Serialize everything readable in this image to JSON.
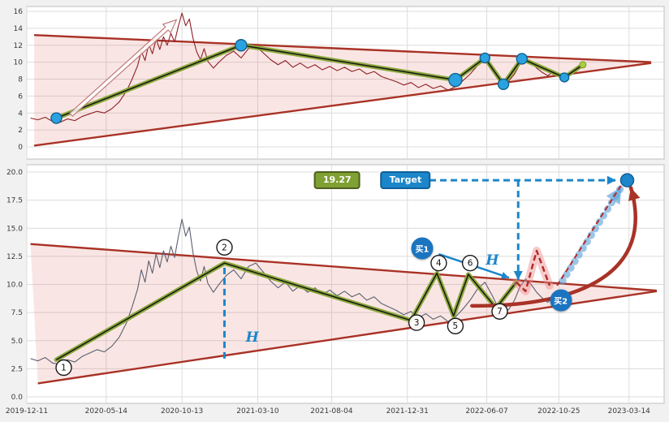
{
  "figure": {
    "bg": "#f1f1f1",
    "panel_bg": "#ffffff",
    "grid_color": "#dcdcdc",
    "border_color": "#bfbfbf",
    "tick_color": "#3a3a3a",
    "accent_blue": "#1c86ca",
    "accent_red": "#a93226",
    "accent_green": "#86a532"
  },
  "annotations": {
    "price_label": "19.27",
    "target_label": "Target",
    "buy1_label": "买1",
    "buy2_label": "买2",
    "h_label": "H"
  },
  "chart_data": [
    {
      "type": "line",
      "panel": "top",
      "title": "",
      "xlabel": "",
      "ylabel": "",
      "grid": true,
      "legend": "none",
      "x_range": [
        2019.94,
        2023.39
      ],
      "y_range": [
        0,
        16
      ],
      "y_ticks": [
        0,
        2,
        4,
        6,
        8,
        10,
        12,
        14,
        16
      ],
      "x_ticks": [
        2019.94,
        2020.37,
        2020.78,
        2021.19,
        2021.59,
        2022.0,
        2022.43,
        2022.82,
        2023.2
      ],
      "wedge": {
        "line": "#a93226",
        "fill": "rgba(217,98,88,0.16)",
        "upper": [
          [
            2019.98,
            13.2
          ],
          [
            2023.32,
            10.0
          ]
        ],
        "lower": [
          [
            2019.98,
            0.15
          ],
          [
            2023.32,
            9.9
          ]
        ]
      },
      "price": {
        "name": "price",
        "color": "#8e1f25",
        "points": [
          [
            2019.96,
            3.4
          ],
          [
            2020.0,
            3.2
          ],
          [
            2020.04,
            3.5
          ],
          [
            2020.08,
            3.0
          ],
          [
            2020.12,
            2.9
          ],
          [
            2020.16,
            3.3
          ],
          [
            2020.2,
            3.1
          ],
          [
            2020.24,
            3.6
          ],
          [
            2020.28,
            3.9
          ],
          [
            2020.32,
            4.2
          ],
          [
            2020.36,
            4.0
          ],
          [
            2020.4,
            4.5
          ],
          [
            2020.44,
            5.3
          ],
          [
            2020.48,
            6.6
          ],
          [
            2020.51,
            8.0
          ],
          [
            2020.54,
            9.6
          ],
          [
            2020.56,
            11.3
          ],
          [
            2020.58,
            10.2
          ],
          [
            2020.6,
            12.1
          ],
          [
            2020.62,
            11.0
          ],
          [
            2020.64,
            12.7
          ],
          [
            2020.66,
            11.5
          ],
          [
            2020.68,
            13.0
          ],
          [
            2020.7,
            12.0
          ],
          [
            2020.72,
            13.4
          ],
          [
            2020.74,
            12.4
          ],
          [
            2020.76,
            14.2
          ],
          [
            2020.78,
            15.8
          ],
          [
            2020.8,
            14.3
          ],
          [
            2020.82,
            15.1
          ],
          [
            2020.84,
            12.8
          ],
          [
            2020.86,
            11.2
          ],
          [
            2020.88,
            10.3
          ],
          [
            2020.9,
            11.6
          ],
          [
            2020.92,
            10.1
          ],
          [
            2020.95,
            9.3
          ],
          [
            2020.98,
            10.0
          ],
          [
            2021.02,
            10.8
          ],
          [
            2021.06,
            11.3
          ],
          [
            2021.1,
            10.5
          ],
          [
            2021.14,
            11.6
          ],
          [
            2021.18,
            11.9
          ],
          [
            2021.22,
            11.1
          ],
          [
            2021.26,
            10.3
          ],
          [
            2021.3,
            9.7
          ],
          [
            2021.34,
            10.2
          ],
          [
            2021.38,
            9.4
          ],
          [
            2021.42,
            9.9
          ],
          [
            2021.46,
            9.3
          ],
          [
            2021.5,
            9.7
          ],
          [
            2021.54,
            9.1
          ],
          [
            2021.58,
            9.5
          ],
          [
            2021.62,
            9.0
          ],
          [
            2021.66,
            9.4
          ],
          [
            2021.7,
            8.9
          ],
          [
            2021.74,
            9.2
          ],
          [
            2021.78,
            8.6
          ],
          [
            2021.82,
            8.9
          ],
          [
            2021.86,
            8.3
          ],
          [
            2021.9,
            8.0
          ],
          [
            2021.94,
            7.7
          ],
          [
            2021.98,
            7.3
          ],
          [
            2022.02,
            7.6
          ],
          [
            2022.06,
            7.0
          ],
          [
            2022.1,
            7.4
          ],
          [
            2022.14,
            6.9
          ],
          [
            2022.18,
            7.2
          ],
          [
            2022.22,
            6.7
          ],
          [
            2022.26,
            7.1
          ],
          [
            2022.3,
            7.8
          ],
          [
            2022.34,
            8.6
          ],
          [
            2022.38,
            9.6
          ],
          [
            2022.42,
            10.2
          ],
          [
            2022.46,
            9.0
          ],
          [
            2022.49,
            8.0
          ],
          [
            2022.52,
            7.3
          ],
          [
            2022.55,
            7.8
          ],
          [
            2022.58,
            8.6
          ],
          [
            2022.61,
            9.8
          ],
          [
            2022.64,
            10.5
          ],
          [
            2022.67,
            10.0
          ],
          [
            2022.7,
            9.3
          ],
          [
            2022.73,
            8.8
          ],
          [
            2022.76,
            8.4
          ],
          [
            2022.79,
            8.9
          ],
          [
            2022.82,
            8.5
          ],
          [
            2022.85,
            8.1
          ],
          [
            2022.88,
            8.7
          ],
          [
            2022.91,
            9.2
          ],
          [
            2022.94,
            9.7
          ]
        ]
      },
      "zigzag": {
        "outer": "#86a532",
        "inner": "#161616",
        "points": [
          [
            2020.1,
            3.4
          ],
          [
            2021.1,
            12.0
          ],
          [
            2022.26,
            7.9
          ],
          [
            2022.42,
            10.5
          ],
          [
            2022.52,
            7.4
          ],
          [
            2022.62,
            10.4
          ],
          [
            2022.85,
            8.2
          ],
          [
            2022.95,
            9.7
          ]
        ]
      },
      "markers": [
        {
          "x": 2020.1,
          "y": 3.4,
          "r": 6.5
        },
        {
          "x": 2021.1,
          "y": 12.0,
          "r": 7
        },
        {
          "x": 2022.26,
          "y": 7.9,
          "r": 8
        },
        {
          "x": 2022.42,
          "y": 10.5,
          "r": 6
        },
        {
          "x": 2022.52,
          "y": 7.4,
          "r": 6.5
        },
        {
          "x": 2022.62,
          "y": 10.4,
          "r": 6.5
        },
        {
          "x": 2022.85,
          "y": 8.2,
          "r": 5.5
        }
      ],
      "end_dot": {
        "x": 2022.95,
        "y": 9.7
      },
      "arrow_hollow": {
        "from": [
          2020.18,
          3.8
        ],
        "to": [
          2020.75,
          15.0
        ]
      }
    },
    {
      "type": "line",
      "panel": "bottom",
      "title": "",
      "xlabel": "",
      "ylabel": "",
      "grid": true,
      "legend": "none",
      "x_range": [
        2019.94,
        2023.39
      ],
      "y_range": [
        0,
        20
      ],
      "y_ticks": [
        0,
        2.5,
        5,
        7.5,
        10,
        12.5,
        15,
        17.5,
        20
      ],
      "y_tick_labels": [
        "0.0",
        "2.5",
        "5.0",
        "7.5",
        "10.0",
        "12.5",
        "15.0",
        "17.5",
        "20.0"
      ],
      "x_ticks": [
        2019.94,
        2020.37,
        2020.78,
        2021.19,
        2021.59,
        2022.0,
        2022.43,
        2022.82,
        2023.2
      ],
      "x_tick_labels": [
        "2019-12-11",
        "2020-05-14",
        "2020-10-13",
        "2021-03-10",
        "2021-08-04",
        "2021-12-31",
        "2022-06-07",
        "2022-10-25",
        "2023-03-14"
      ],
      "wedge": {
        "line": "#a93226",
        "fill": "rgba(217,98,88,0.16)",
        "upper": [
          [
            2019.96,
            13.6
          ],
          [
            2023.35,
            9.45
          ]
        ],
        "lower": [
          [
            2020.0,
            1.2
          ],
          [
            2023.35,
            9.4
          ]
        ]
      },
      "price": {
        "name": "price",
        "color": "#5b6070",
        "points": [
          [
            2019.96,
            3.4
          ],
          [
            2020.0,
            3.2
          ],
          [
            2020.04,
            3.5
          ],
          [
            2020.08,
            3.0
          ],
          [
            2020.12,
            2.9
          ],
          [
            2020.16,
            3.3
          ],
          [
            2020.2,
            3.1
          ],
          [
            2020.24,
            3.6
          ],
          [
            2020.28,
            3.9
          ],
          [
            2020.32,
            4.2
          ],
          [
            2020.36,
            4.0
          ],
          [
            2020.4,
            4.5
          ],
          [
            2020.44,
            5.3
          ],
          [
            2020.48,
            6.6
          ],
          [
            2020.51,
            8.0
          ],
          [
            2020.54,
            9.6
          ],
          [
            2020.56,
            11.3
          ],
          [
            2020.58,
            10.2
          ],
          [
            2020.6,
            12.1
          ],
          [
            2020.62,
            11.0
          ],
          [
            2020.64,
            12.7
          ],
          [
            2020.66,
            11.5
          ],
          [
            2020.68,
            13.0
          ],
          [
            2020.7,
            12.0
          ],
          [
            2020.72,
            13.4
          ],
          [
            2020.74,
            12.4
          ],
          [
            2020.76,
            14.2
          ],
          [
            2020.78,
            15.8
          ],
          [
            2020.8,
            14.3
          ],
          [
            2020.82,
            15.1
          ],
          [
            2020.84,
            12.8
          ],
          [
            2020.86,
            11.2
          ],
          [
            2020.88,
            10.3
          ],
          [
            2020.9,
            11.6
          ],
          [
            2020.92,
            10.1
          ],
          [
            2020.95,
            9.3
          ],
          [
            2020.98,
            10.0
          ],
          [
            2021.02,
            10.8
          ],
          [
            2021.06,
            11.3
          ],
          [
            2021.1,
            10.5
          ],
          [
            2021.14,
            11.6
          ],
          [
            2021.18,
            11.9
          ],
          [
            2021.22,
            11.1
          ],
          [
            2021.26,
            10.3
          ],
          [
            2021.3,
            9.7
          ],
          [
            2021.34,
            10.2
          ],
          [
            2021.38,
            9.4
          ],
          [
            2021.42,
            9.9
          ],
          [
            2021.46,
            9.3
          ],
          [
            2021.5,
            9.7
          ],
          [
            2021.54,
            9.1
          ],
          [
            2021.58,
            9.5
          ],
          [
            2021.62,
            9.0
          ],
          [
            2021.66,
            9.4
          ],
          [
            2021.7,
            8.9
          ],
          [
            2021.74,
            9.2
          ],
          [
            2021.78,
            8.6
          ],
          [
            2021.82,
            8.9
          ],
          [
            2021.86,
            8.3
          ],
          [
            2021.9,
            8.0
          ],
          [
            2021.94,
            7.7
          ],
          [
            2021.98,
            7.3
          ],
          [
            2022.02,
            7.6
          ],
          [
            2022.06,
            7.0
          ],
          [
            2022.1,
            7.4
          ],
          [
            2022.14,
            6.9
          ],
          [
            2022.18,
            7.2
          ],
          [
            2022.22,
            6.7
          ],
          [
            2022.26,
            7.1
          ],
          [
            2022.3,
            7.8
          ],
          [
            2022.34,
            8.6
          ],
          [
            2022.38,
            9.6
          ],
          [
            2022.42,
            10.2
          ],
          [
            2022.46,
            9.0
          ],
          [
            2022.49,
            8.0
          ],
          [
            2022.52,
            7.3
          ],
          [
            2022.55,
            7.8
          ],
          [
            2022.58,
            8.6
          ],
          [
            2022.61,
            9.8
          ],
          [
            2022.64,
            10.5
          ],
          [
            2022.67,
            10.0
          ],
          [
            2022.7,
            9.3
          ],
          [
            2022.73,
            8.8
          ],
          [
            2022.76,
            8.4
          ],
          [
            2022.79,
            8.9
          ],
          [
            2022.82,
            8.5
          ]
        ]
      },
      "zigzag": {
        "outer": "#86a532",
        "inner": "#161616",
        "points": [
          [
            2020.1,
            3.3
          ],
          [
            2021.01,
            11.9
          ],
          [
            2022.02,
            6.8
          ],
          [
            2022.16,
            11.0
          ],
          [
            2022.25,
            7.2
          ],
          [
            2022.33,
            10.9
          ],
          [
            2022.48,
            7.9
          ],
          [
            2022.59,
            10.2
          ]
        ]
      },
      "pivots": [
        {
          "n": "1",
          "x": 2020.14,
          "y": 2.6
        },
        {
          "n": "2",
          "x": 2021.01,
          "y": 13.3
        },
        {
          "n": "3",
          "x": 2022.05,
          "y": 6.6
        },
        {
          "n": "4",
          "x": 2022.17,
          "y": 11.9
        },
        {
          "n": "5",
          "x": 2022.26,
          "y": 6.3
        },
        {
          "n": "6",
          "x": 2022.34,
          "y": 11.9
        },
        {
          "n": "7",
          "x": 2022.5,
          "y": 7.6
        }
      ],
      "projection": {
        "halo": "rgba(238,140,140,0.45)",
        "line": "#b02a27",
        "points": [
          [
            2022.59,
            10.2
          ],
          [
            2022.64,
            9.4
          ],
          [
            2022.7,
            13.0
          ],
          [
            2022.77,
            9.9
          ]
        ]
      },
      "trend_curve": {
        "p0": [
          2022.35,
          8.1
        ],
        "c1": [
          2022.95,
          8.0
        ],
        "c2": [
          2023.34,
          11.2
        ],
        "p1": [
          2023.21,
          18.6
        ]
      },
      "blue_arrow": {
        "from": [
          2022.84,
          10.3
        ],
        "to": [
          2023.16,
          18.7
        ]
      },
      "red_dash": {
        "from": [
          2022.81,
          9.9
        ],
        "to": [
          2023.16,
          18.9
        ]
      },
      "measures": {
        "v1": {
          "x": 2021.01,
          "y1": 3.4,
          "y2": 11.8
        },
        "v2": {
          "x": 2022.6,
          "y1": 19.27,
          "y2": 10.4
        },
        "h_arrow": {
          "y": 19.27,
          "x1": 2022.12,
          "x2": 2023.13
        },
        "buy_arrow": {
          "from": [
            2022.17,
            12.7
          ],
          "to": [
            2022.55,
            10.6
          ]
        }
      },
      "target_dot": {
        "x": 2023.19,
        "y": 19.27
      },
      "target_value": 19.27,
      "labels_pos": {
        "badge-price": {
          "x": 2021.62,
          "y": 19.3
        },
        "badge-target": {
          "x": 2021.99,
          "y": 19.3
        },
        "buy1": {
          "x": 2022.08,
          "y": 13.2
        },
        "buy2": {
          "x": 2022.83,
          "y": 8.6
        },
        "h1": {
          "x": 2021.16,
          "y": 5.3
        },
        "h2": {
          "x": 2022.46,
          "y": 12.1
        }
      }
    }
  ]
}
